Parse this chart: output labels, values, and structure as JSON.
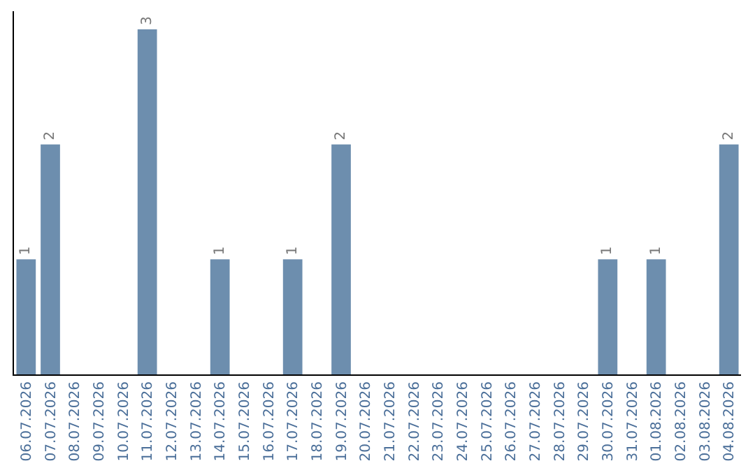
{
  "chart_data": {
    "type": "bar",
    "categories": [
      "06.07.2026",
      "07.07.2026",
      "08.07.2026",
      "09.07.2026",
      "10.07.2026",
      "11.07.2026",
      "12.07.2026",
      "13.07.2026",
      "14.07.2026",
      "15.07.2026",
      "16.07.2026",
      "17.07.2026",
      "18.07.2026",
      "19.07.2026",
      "20.07.2026",
      "21.07.2026",
      "22.07.2026",
      "23.07.2026",
      "24.07.2026",
      "25.07.2026",
      "26.07.2026",
      "27.07.2026",
      "28.07.2026",
      "29.07.2026",
      "30.07.2026",
      "31.07.2026",
      "01.08.2026",
      "02.08.2026",
      "03.08.2026",
      "04.08.2026"
    ],
    "values": [
      1,
      2,
      0,
      0,
      0,
      3,
      0,
      0,
      1,
      0,
      0,
      1,
      0,
      2,
      0,
      0,
      0,
      0,
      0,
      0,
      0,
      0,
      0,
      0,
      1,
      0,
      1,
      0,
      0,
      2
    ],
    "value_labels": [
      "1",
      "2",
      null,
      null,
      null,
      "3",
      null,
      null,
      "1",
      null,
      null,
      "1",
      null,
      "2",
      null,
      null,
      null,
      null,
      null,
      null,
      null,
      null,
      null,
      null,
      "1",
      null,
      "1",
      null,
      null,
      "2"
    ],
    "color": "#6d8eae",
    "tick_labels": "x",
    "grid": false,
    "legend": false
  }
}
